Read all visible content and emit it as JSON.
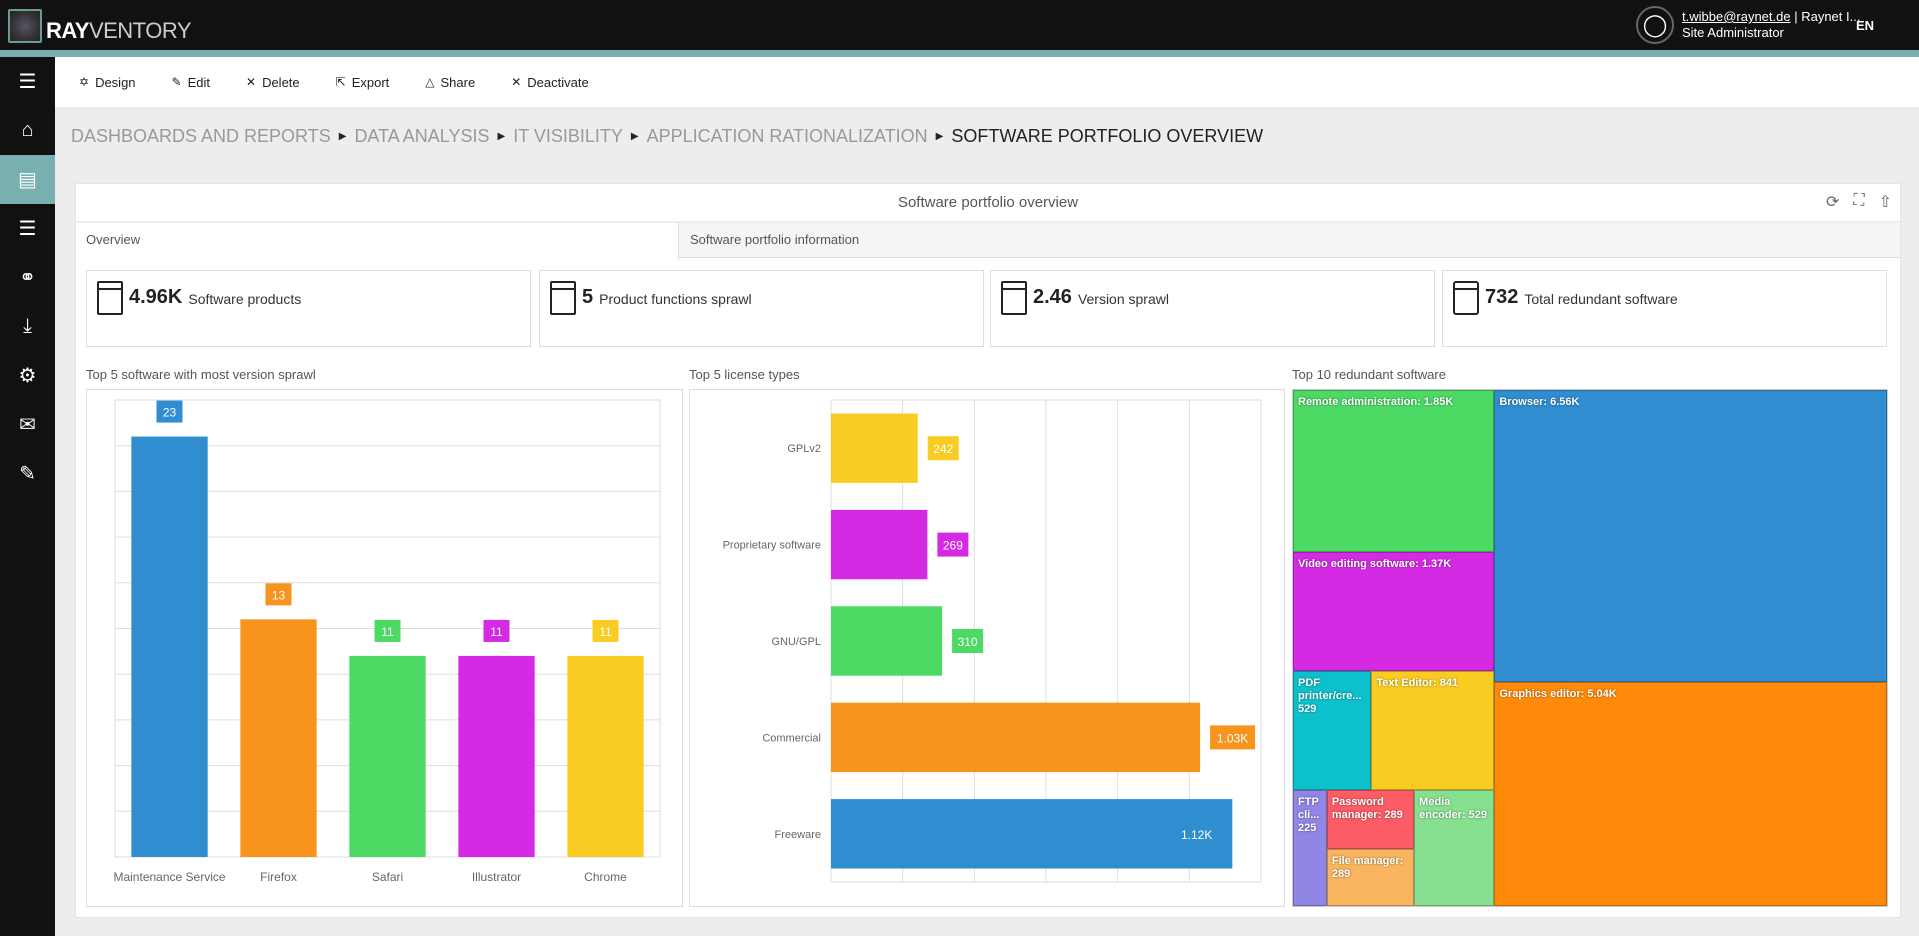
{
  "app": {
    "logo_text": "RAYVENTORY",
    "logo_bold": "RAY",
    "logo_rest": "VENTORY",
    "user_email": "t.wibbe@raynet.de",
    "user_org": " | Raynet I...",
    "user_role": "Site Administrator",
    "language": "EN"
  },
  "sidebar": {
    "items": [
      {
        "icon": "menu-icon"
      },
      {
        "icon": "home-icon"
      },
      {
        "icon": "dashboard-icon",
        "active": true
      },
      {
        "icon": "list-icon"
      },
      {
        "icon": "connections-icon"
      },
      {
        "icon": "download-icon"
      },
      {
        "icon": "user-settings-icon"
      },
      {
        "icon": "mail-icon"
      },
      {
        "icon": "report-edit-icon"
      }
    ]
  },
  "toolbar": {
    "design": "Design",
    "edit": "Edit",
    "delete": "Delete",
    "export": "Export",
    "share": "Share",
    "deactivate": "Deactivate"
  },
  "breadcrumb": [
    "DASHBOARDS AND REPORTS",
    "DATA ANALYSIS",
    "IT VISIBILITY",
    "APPLICATION RATIONALIZATION",
    "SOFTWARE PORTFOLIO OVERVIEW"
  ],
  "panel": {
    "title": "Software portfolio overview",
    "tabs": [
      "Overview",
      "Software portfolio information"
    ]
  },
  "kpis": [
    {
      "value": "4.96K",
      "label": "Software products",
      "icon": "box-icon"
    },
    {
      "value": "5",
      "label": "Product functions sprawl",
      "icon": "box-icon"
    },
    {
      "value": "2.46",
      "label": "Version sprawl",
      "icon": "box-icon"
    },
    {
      "value": "732",
      "label": "Total redundant software",
      "icon": "checkbox-copy-icon"
    }
  ],
  "colors": {
    "blue": "#2f8dd0",
    "orange": "#f7941d",
    "green": "#4cd964",
    "magenta": "#d42ae4",
    "yellow": "#f9cc22"
  },
  "chart_data": [
    {
      "type": "bar",
      "title": "Top 5 software with most version sprawl",
      "categories": [
        "Maintenance Service",
        "Firefox",
        "Safari",
        "Illustrator",
        "Chrome"
      ],
      "values": [
        23,
        13,
        11,
        11,
        11
      ],
      "value_labels": [
        "23",
        "13",
        "11",
        "11",
        "11"
      ],
      "colors": [
        "#2f8dd0",
        "#f7941d",
        "#4cd964",
        "#d42ae4",
        "#f9cc22"
      ],
      "ylim": [
        0,
        25
      ],
      "grid": true
    },
    {
      "type": "bar",
      "orientation": "horizontal",
      "title": "Top 5 license types",
      "categories": [
        "GPLv2",
        "Proprietary software",
        "GNU/GPL",
        "Commercial",
        "Freeware"
      ],
      "values": [
        242,
        269,
        310,
        1030,
        1120
      ],
      "value_labels": [
        "242",
        "269",
        "310",
        "1.03K",
        "1.12K"
      ],
      "colors": [
        "#f9cc22",
        "#d42ae4",
        "#4cd964",
        "#f7941d",
        "#2f8dd0"
      ],
      "xlim": [
        0,
        1200
      ],
      "grid": true
    },
    {
      "type": "treemap",
      "title": "Top 10 redundant software",
      "items": [
        {
          "label": "Remote administration: 1.85K",
          "name": "Remote administration",
          "value": 1850,
          "color": "#4cd964"
        },
        {
          "label": "Video editing software: 1.37K",
          "name": "Video editing software",
          "value": 1370,
          "color": "#d42ae4"
        },
        {
          "label": "PDF printer/cre... 529",
          "name": "PDF printer/creator",
          "value": 529,
          "color": "#0cc0cc"
        },
        {
          "label": "Text Editor: 841",
          "name": "Text Editor",
          "value": 841,
          "color": "#f9cc22"
        },
        {
          "label": "FTP cli... 225",
          "name": "FTP client",
          "value": 225,
          "color": "#8f86e6"
        },
        {
          "label": "Password manager: 289",
          "name": "Password manager",
          "value": 289,
          "color": "#fc5c65"
        },
        {
          "label": "File manager: 289",
          "name": "File manager",
          "value": 289,
          "color": "#f8b45e"
        },
        {
          "label": "Media encoder: 529",
          "name": "Media encoder",
          "value": 529,
          "color": "#86e08f"
        },
        {
          "label": "Browser: 6.56K",
          "name": "Browser",
          "value": 6560,
          "color": "#2f8dd0"
        },
        {
          "label": "Graphics editor: 5.04K",
          "name": "Graphics editor",
          "value": 5040,
          "color": "#ff8a0a"
        }
      ]
    }
  ]
}
